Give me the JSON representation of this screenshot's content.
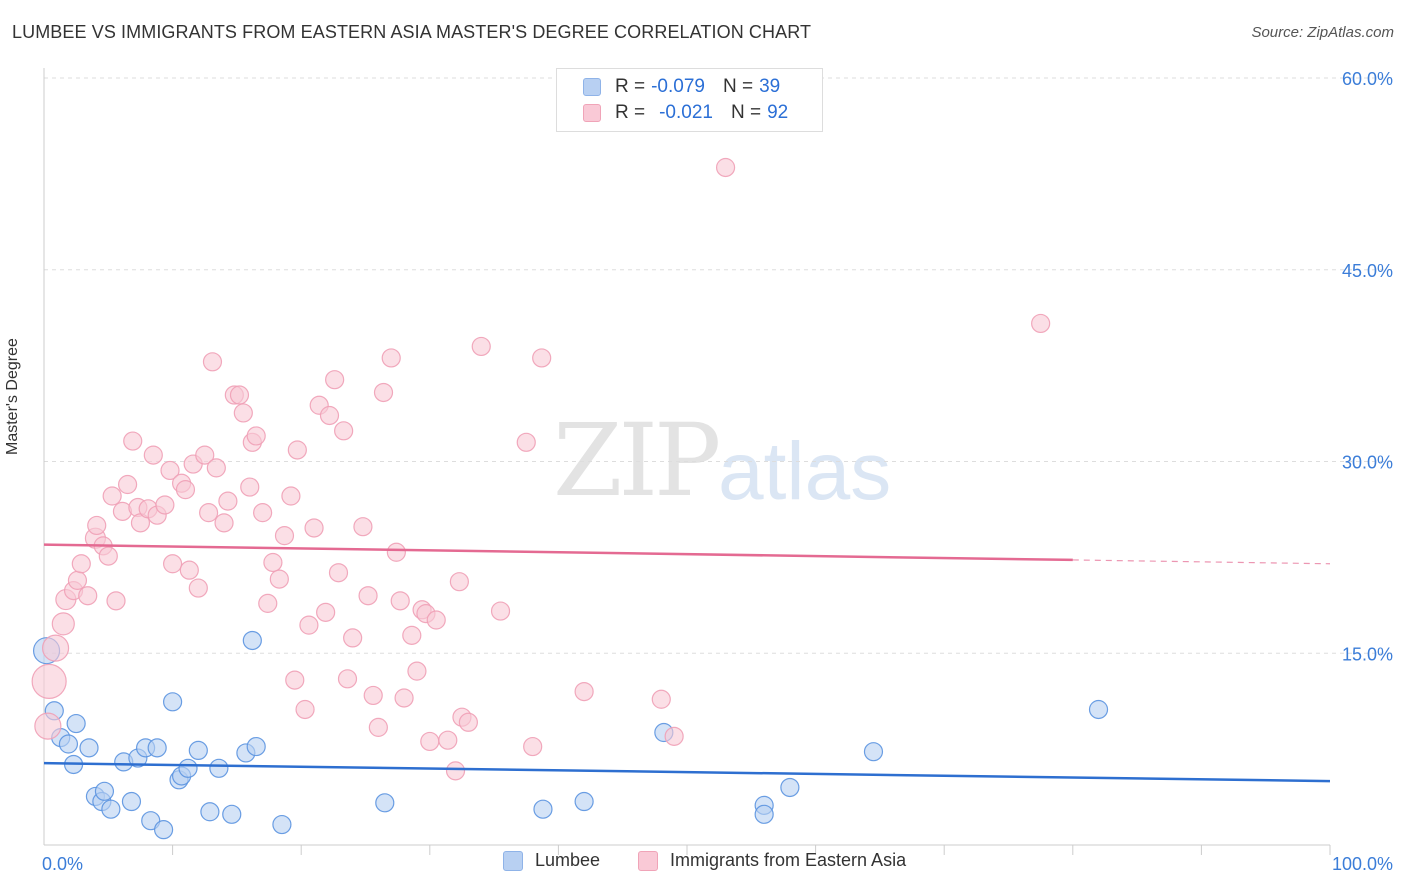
{
  "header": {
    "title": "LUMBEE VS IMMIGRANTS FROM EASTERN ASIA MASTER'S DEGREE CORRELATION CHART",
    "source": "Source: ZipAtlas.com"
  },
  "watermark": {
    "zip": "ZIP",
    "atlas": "atlas"
  },
  "legend": {
    "rows": [
      {
        "r_label": "R =",
        "r_value": "-0.079",
        "n_label": "N =",
        "n_value": "39",
        "color": "#b8d0f2",
        "border": "#8fb3e8"
      },
      {
        "r_label": "R =",
        "r_value": "-0.021",
        "n_label": "N =",
        "n_value": "92",
        "color": "#f9c9d6",
        "border": "#f0a4b8"
      }
    ]
  },
  "bottom_legend": {
    "lumbee": "Lumbee",
    "immigrants": "Immigrants from Eastern Asia"
  },
  "chart_data": {
    "type": "scatter",
    "title": "LUMBEE VS IMMIGRANTS FROM EASTERN ASIA MASTER'S DEGREE CORRELATION CHART",
    "ylabel": "Master's Degree",
    "xlabel": "",
    "xlim": [
      0,
      100
    ],
    "ylim": [
      0,
      60
    ],
    "x_tick_labels": [
      "0.0%",
      "100.0%"
    ],
    "y_ticks": [
      15,
      30,
      45,
      60
    ],
    "y_tick_labels": [
      "15.0%",
      "30.0%",
      "45.0%",
      "60.0%"
    ],
    "grid": true,
    "legend_placement": "top-center",
    "series": [
      {
        "name": "Lumbee",
        "color": "#5b93e0",
        "fill": "#b8d0f2",
        "trend": {
          "x": [
            0,
            100
          ],
          "y": [
            6.4,
            5.0
          ],
          "color": "#2e6fd0"
        },
        "points": [
          [
            0.2,
            15.2,
            13
          ],
          [
            0.8,
            10.5,
            9
          ],
          [
            1.3,
            8.4,
            9
          ],
          [
            1.9,
            7.9,
            9
          ],
          [
            2.3,
            6.3,
            9
          ],
          [
            2.5,
            9.5,
            9
          ],
          [
            3.5,
            7.6,
            9
          ],
          [
            4.0,
            3.8,
            9
          ],
          [
            4.5,
            3.4,
            9
          ],
          [
            4.7,
            4.2,
            9
          ],
          [
            5.2,
            2.8,
            9
          ],
          [
            6.2,
            6.5,
            9
          ],
          [
            6.8,
            3.4,
            9
          ],
          [
            7.3,
            6.8,
            9
          ],
          [
            7.9,
            7.6,
            9
          ],
          [
            8.3,
            1.9,
            9
          ],
          [
            8.8,
            7.6,
            9
          ],
          [
            9.3,
            1.2,
            9
          ],
          [
            10.0,
            11.2,
            9
          ],
          [
            10.5,
            5.1,
            9
          ],
          [
            10.7,
            5.4,
            9
          ],
          [
            11.2,
            6.0,
            9
          ],
          [
            12.0,
            7.4,
            9
          ],
          [
            12.9,
            2.6,
            9
          ],
          [
            13.6,
            6.0,
            9
          ],
          [
            14.6,
            2.4,
            9
          ],
          [
            15.7,
            7.2,
            9
          ],
          [
            16.2,
            16.0,
            9
          ],
          [
            16.5,
            7.7,
            9
          ],
          [
            18.5,
            1.6,
            9
          ],
          [
            26.5,
            3.3,
            9
          ],
          [
            38.8,
            2.8,
            9
          ],
          [
            42.0,
            3.4,
            9
          ],
          [
            48.2,
            8.8,
            9
          ],
          [
            56.0,
            3.1,
            9
          ],
          [
            56.0,
            2.4,
            9
          ],
          [
            58.0,
            4.5,
            9
          ],
          [
            64.5,
            7.3,
            9
          ],
          [
            82.0,
            10.6,
            9
          ]
        ]
      },
      {
        "name": "Immigrants from Eastern Asia",
        "color": "#f0a0b6",
        "fill": "#f9c9d6",
        "trend": {
          "x": [
            0,
            80
          ],
          "y": [
            23.5,
            22.3
          ],
          "dash_to": [
            100,
            22.0
          ],
          "color": "#e46a92"
        },
        "points": [
          [
            0.4,
            12.8,
            17
          ],
          [
            0.3,
            9.3,
            13
          ],
          [
            0.9,
            15.4,
            13
          ],
          [
            1.5,
            17.3,
            11
          ],
          [
            1.7,
            19.2,
            10
          ],
          [
            2.3,
            19.9,
            9
          ],
          [
            2.6,
            20.7,
            9
          ],
          [
            2.9,
            22.0,
            9
          ],
          [
            3.4,
            19.5,
            9
          ],
          [
            4.0,
            24.0,
            10
          ],
          [
            4.1,
            25.0,
            9
          ],
          [
            4.6,
            23.4,
            9
          ],
          [
            5.0,
            22.6,
            9
          ],
          [
            5.3,
            27.3,
            9
          ],
          [
            5.6,
            19.1,
            9
          ],
          [
            6.1,
            26.1,
            9
          ],
          [
            6.5,
            28.2,
            9
          ],
          [
            6.9,
            31.6,
            9
          ],
          [
            7.3,
            26.4,
            9
          ],
          [
            7.5,
            25.2,
            9
          ],
          [
            8.1,
            26.3,
            9
          ],
          [
            8.5,
            30.5,
            9
          ],
          [
            8.8,
            25.8,
            9
          ],
          [
            9.4,
            26.6,
            9
          ],
          [
            9.8,
            29.3,
            9
          ],
          [
            10.0,
            22.0,
            9
          ],
          [
            10.7,
            28.3,
            9
          ],
          [
            11.0,
            27.8,
            9
          ],
          [
            11.3,
            21.5,
            9
          ],
          [
            11.6,
            29.8,
            9
          ],
          [
            12.0,
            20.1,
            9
          ],
          [
            12.5,
            30.5,
            9
          ],
          [
            12.8,
            26.0,
            9
          ],
          [
            13.1,
            37.8,
            9
          ],
          [
            13.4,
            29.5,
            9
          ],
          [
            14.0,
            25.2,
            9
          ],
          [
            14.3,
            26.9,
            9
          ],
          [
            14.8,
            35.2,
            9
          ],
          [
            15.2,
            35.2,
            9
          ],
          [
            15.5,
            33.8,
            9
          ],
          [
            16.0,
            28.0,
            9
          ],
          [
            16.2,
            31.5,
            9
          ],
          [
            16.5,
            32.0,
            9
          ],
          [
            17.0,
            26.0,
            9
          ],
          [
            17.4,
            18.9,
            9
          ],
          [
            17.8,
            22.1,
            9
          ],
          [
            18.3,
            20.8,
            9
          ],
          [
            18.7,
            24.2,
            9
          ],
          [
            19.2,
            27.3,
            9
          ],
          [
            19.5,
            12.9,
            9
          ],
          [
            19.7,
            30.9,
            9
          ],
          [
            20.3,
            10.6,
            9
          ],
          [
            20.6,
            17.2,
            9
          ],
          [
            21.0,
            24.8,
            9
          ],
          [
            21.4,
            34.4,
            9
          ],
          [
            21.9,
            18.2,
            9
          ],
          [
            22.2,
            33.6,
            9
          ],
          [
            22.6,
            36.4,
            9
          ],
          [
            22.9,
            21.3,
            9
          ],
          [
            23.3,
            32.4,
            9
          ],
          [
            23.6,
            13.0,
            9
          ],
          [
            24.0,
            16.2,
            9
          ],
          [
            24.8,
            24.9,
            9
          ],
          [
            25.2,
            19.5,
            9
          ],
          [
            25.6,
            11.7,
            9
          ],
          [
            26.0,
            9.2,
            9
          ],
          [
            26.4,
            35.4,
            9
          ],
          [
            27.0,
            38.1,
            9
          ],
          [
            27.4,
            22.9,
            9
          ],
          [
            27.7,
            19.1,
            9
          ],
          [
            28.0,
            11.5,
            9
          ],
          [
            28.6,
            16.4,
            9
          ],
          [
            29.0,
            13.6,
            9
          ],
          [
            29.4,
            18.4,
            9
          ],
          [
            29.7,
            18.1,
            9
          ],
          [
            30.0,
            8.1,
            9
          ],
          [
            30.5,
            17.6,
            9
          ],
          [
            31.4,
            8.2,
            9
          ],
          [
            32.0,
            5.8,
            9
          ],
          [
            32.3,
            20.6,
            9
          ],
          [
            32.5,
            10.0,
            9
          ],
          [
            33.0,
            9.6,
            9
          ],
          [
            34.0,
            39.0,
            9
          ],
          [
            35.5,
            18.3,
            9
          ],
          [
            37.5,
            31.5,
            9
          ],
          [
            38.0,
            7.7,
            9
          ],
          [
            38.7,
            38.1,
            9
          ],
          [
            42.0,
            12.0,
            9
          ],
          [
            48.0,
            11.4,
            9
          ],
          [
            49.0,
            8.5,
            9
          ],
          [
            53.0,
            53.0,
            9
          ],
          [
            77.5,
            40.8,
            9
          ]
        ]
      }
    ]
  }
}
